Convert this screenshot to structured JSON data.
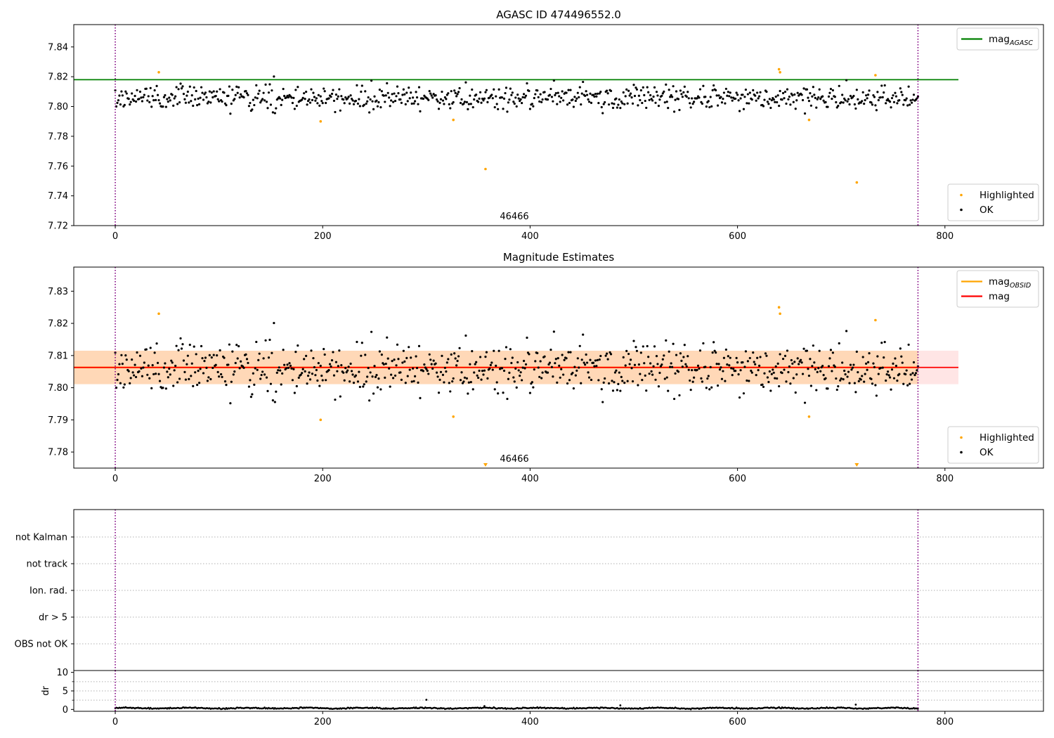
{
  "chart_data": [
    {
      "id": "panel1",
      "type": "scatter",
      "title": "AGASC ID 474496552.0",
      "obsid_label": "46466",
      "xlim": [
        -40,
        895
      ],
      "ylim": [
        7.72,
        7.855
      ],
      "xticks": [
        0,
        200,
        400,
        600,
        800
      ],
      "yticks": [
        7.72,
        7.74,
        7.76,
        7.78,
        7.8,
        7.82,
        7.84
      ],
      "vlines": [
        0,
        774
      ],
      "reference_line": {
        "name": "mag",
        "subscript": "AGASC",
        "y": 7.818,
        "x": [
          -40,
          813
        ],
        "color": "#008000"
      },
      "legends": [
        {
          "position": "top-right",
          "entries": [
            {
              "kind": "line",
              "color": "#008000",
              "label": "mag",
              "sub": "AGASC"
            }
          ]
        },
        {
          "position": "bottom-right",
          "entries": [
            {
              "kind": "dot",
              "color": "#ffa500",
              "label": "Highlighted"
            },
            {
              "kind": "dot",
              "color": "#000000",
              "label": "OK"
            }
          ]
        }
      ],
      "ok_series": {
        "name": "OK",
        "color": "#000000",
        "n": 775,
        "mean": 7.8062,
        "sd": 0.0047
      },
      "highlighted_points": [
        {
          "x": 42,
          "y": 7.823
        },
        {
          "x": 198,
          "y": 7.79
        },
        {
          "x": 326,
          "y": 7.791
        },
        {
          "x": 357,
          "y": 7.758
        },
        {
          "x": 640,
          "y": 7.825
        },
        {
          "x": 641,
          "y": 7.823
        },
        {
          "x": 669,
          "y": 7.791
        },
        {
          "x": 715,
          "y": 7.749
        },
        {
          "x": 733,
          "y": 7.821
        }
      ]
    },
    {
      "id": "panel2",
      "type": "scatter",
      "title": "Magnitude Estimates",
      "obsid_label": "46466",
      "xlim": [
        -40,
        895
      ],
      "ylim": [
        7.775,
        7.8375
      ],
      "xticks": [
        0,
        200,
        400,
        600,
        800
      ],
      "yticks": [
        7.78,
        7.79,
        7.8,
        7.81,
        7.82,
        7.83
      ],
      "vlines": [
        0,
        774
      ],
      "mag_obsid": {
        "name": "mag",
        "subscript": "OBSID",
        "y": 7.8063,
        "band": [
          7.8011,
          7.8115
        ],
        "x": [
          -40,
          774
        ],
        "color": "#ffa500"
      },
      "mag": {
        "name": "mag",
        "y": 7.8063,
        "band": [
          7.8011,
          7.8115
        ],
        "x": [
          -40,
          813
        ],
        "color": "#ff0000"
      },
      "legends": [
        {
          "position": "top-right",
          "entries": [
            {
              "kind": "line",
              "color": "#ffa500",
              "label": "mag",
              "sub": "OBSID"
            },
            {
              "kind": "line",
              "color": "#ff0000",
              "label": "mag"
            }
          ]
        },
        {
          "position": "bottom-right",
          "entries": [
            {
              "kind": "dot",
              "color": "#ffa500",
              "label": "Highlighted"
            },
            {
              "kind": "dot",
              "color": "#000000",
              "label": "OK"
            }
          ]
        }
      ],
      "offscale_markers": [
        {
          "x": 357
        },
        {
          "x": 715
        }
      ]
    },
    {
      "id": "panel3",
      "type": "scatter",
      "xlim": [
        -40,
        895
      ],
      "categories": [
        "not Kalman",
        "not track",
        "Ion. rad.",
        "dr > 5",
        "OBS not OK"
      ],
      "vlines": [
        0,
        774
      ],
      "flag_points": []
    },
    {
      "id": "panel4",
      "type": "scatter",
      "ylabel": "dr",
      "xlim": [
        -40,
        895
      ],
      "ylim": [
        -0.5,
        10.5
      ],
      "xticks": [
        0,
        200,
        400,
        600,
        800
      ],
      "yticks": [
        0,
        5,
        10
      ],
      "vlines": [
        0,
        774
      ],
      "dr_series": {
        "mean": 0.35,
        "amp": 0.15
      },
      "dr_spikes": [
        {
          "x": 300,
          "y": 2.6
        },
        {
          "x": 356,
          "y": 0.9
        },
        {
          "x": 487,
          "y": 1.1
        },
        {
          "x": 714,
          "y": 1.3
        }
      ]
    }
  ]
}
